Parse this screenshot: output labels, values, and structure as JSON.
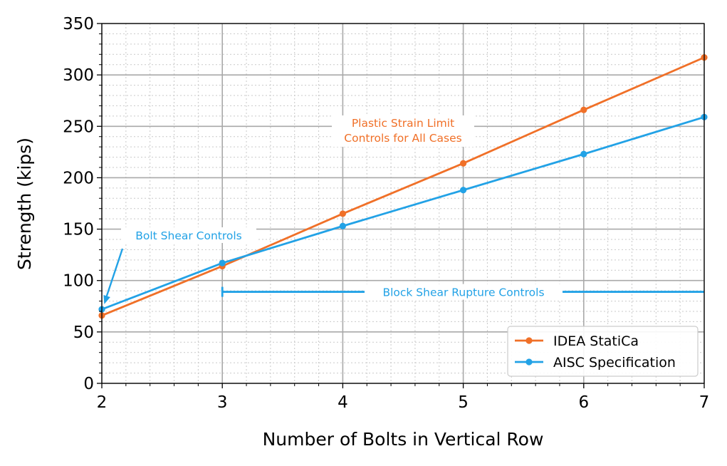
{
  "chart_data": {
    "type": "line",
    "xlabel": "Number of Bolts in Vertical Row",
    "ylabel": "Strength (kips)",
    "xlim": [
      2,
      7
    ],
    "ylim": [
      0,
      350
    ],
    "x_ticks": [
      2,
      3,
      4,
      5,
      6,
      7
    ],
    "y_ticks": [
      0,
      50,
      100,
      150,
      200,
      250,
      300,
      350
    ],
    "grid": true,
    "legend_position": "bottom-right",
    "series": [
      {
        "name": "IDEA StatiCa",
        "color": "#f07028",
        "x": [
          2,
          3,
          4,
          5,
          6,
          7
        ],
        "y": [
          66,
          114,
          165,
          214,
          266,
          317
        ]
      },
      {
        "name": "AISC Specification",
        "color": "#22a2e6",
        "x": [
          2,
          3,
          4,
          5,
          6,
          7
        ],
        "y": [
          72,
          117,
          153,
          188,
          223,
          259
        ]
      }
    ],
    "annotations": [
      {
        "text_lines": [
          "Plastic Strain Limit",
          "Controls for All Cases"
        ],
        "color": "#f07028"
      },
      {
        "text_lines": [
          "Bolt Shear Controls"
        ],
        "color": "#22a2e6",
        "arrow_to": [
          2.02,
          77
        ]
      },
      {
        "text_lines": [
          "Block Shear Rupture Controls"
        ],
        "color": "#22a2e6",
        "span_x": [
          3,
          7
        ],
        "y": 89
      }
    ]
  }
}
